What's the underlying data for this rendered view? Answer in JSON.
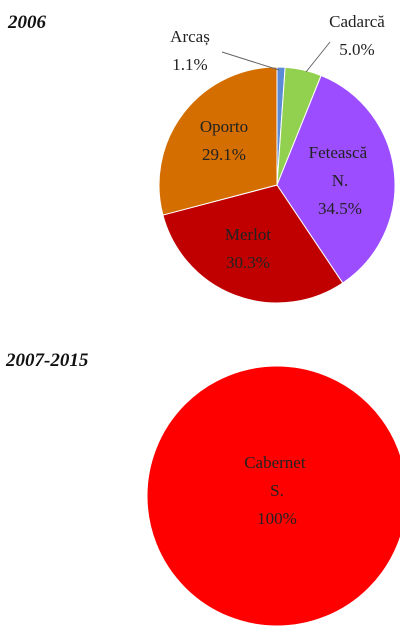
{
  "chart_data": [
    {
      "type": "pie",
      "title": "2006",
      "categories": [
        "Arcaș",
        "Cadarcă",
        "Fetească N.",
        "Merlot",
        "Oporto"
      ],
      "values": [
        1.1,
        5.0,
        34.5,
        30.3,
        29.1
      ],
      "value_labels": [
        "1.1%",
        "5.0%",
        "34.5%",
        "30.3%",
        "29.1%"
      ],
      "colors": [
        "#5b8bd6",
        "#92d050",
        "#9b4dff",
        "#c00000",
        "#d46e00"
      ]
    },
    {
      "type": "pie",
      "title": "2007-2015",
      "categories": [
        "Cabernet S."
      ],
      "values": [
        100
      ],
      "value_labels": [
        "100%"
      ],
      "colors": [
        "#ff0000"
      ]
    }
  ]
}
